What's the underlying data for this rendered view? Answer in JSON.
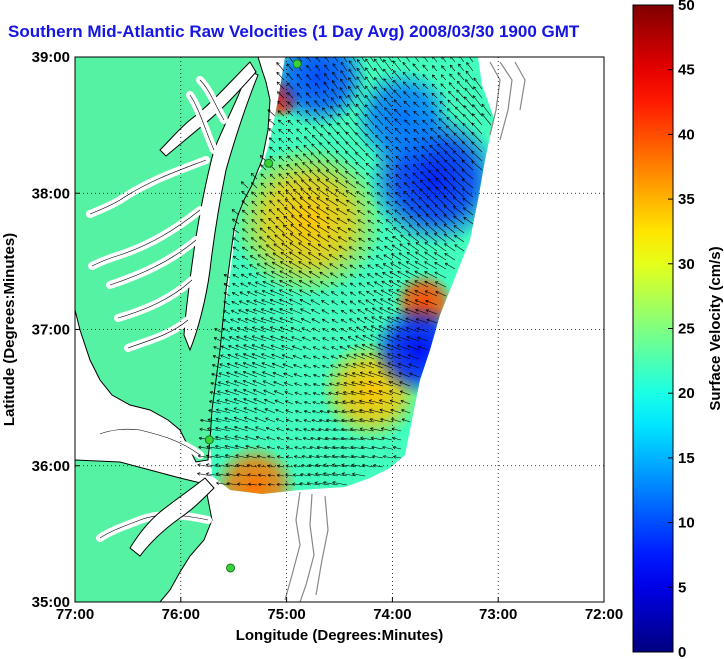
{
  "colors": {
    "title": "#1515e6",
    "land": "#55f2a3",
    "coast": "#000000",
    "bathymetry": "#888888",
    "station": "#3ad23a",
    "arrow": "#000000"
  },
  "chart_data": {
    "type": "heatmap",
    "title": "Southern Mid-Atlantic Raw Velocities (1 Day Avg) 2008/03/30 1900 GMT",
    "xlabel": "Longitude (Degrees:Minutes)",
    "ylabel": "Latitude (Degrees:Minutes)",
    "xlim": [
      -77,
      -72
    ],
    "ylim": [
      35,
      39
    ],
    "x_ticks": [
      {
        "value": -77,
        "label": "77:00"
      },
      {
        "value": -76,
        "label": "76:00"
      },
      {
        "value": -75,
        "label": "75:00"
      },
      {
        "value": -74,
        "label": "74:00"
      },
      {
        "value": -73,
        "label": "73:00"
      },
      {
        "value": -72,
        "label": "72:00"
      }
    ],
    "y_ticks": [
      {
        "value": 35,
        "label": "35:00"
      },
      {
        "value": 36,
        "label": "36:00"
      },
      {
        "value": 37,
        "label": "37:00"
      },
      {
        "value": 38,
        "label": "38:00"
      },
      {
        "value": 39,
        "label": "39:00"
      }
    ],
    "grid": "dotted",
    "colorbar": {
      "label": "Surface Velocity (cm/s)",
      "range": [
        0,
        50
      ],
      "ticks": [
        0,
        5,
        10,
        15,
        20,
        25,
        30,
        35,
        40,
        45,
        50
      ],
      "colormap": "jet"
    },
    "speed_hotspots": [
      {
        "lon": -74.8,
        "lat": 37.8,
        "speed": 34,
        "radius_deg": 0.45
      },
      {
        "lon": -73.7,
        "lat": 37.2,
        "speed": 40,
        "radius_deg": 0.18
      },
      {
        "lon": -74.2,
        "lat": 36.55,
        "speed": 34,
        "radius_deg": 0.3
      },
      {
        "lon": -75.3,
        "lat": 35.85,
        "speed": 38,
        "radius_deg": 0.25
      },
      {
        "lon": -75.05,
        "lat": 38.7,
        "speed": 42,
        "radius_deg": 0.12
      },
      {
        "lon": -74.7,
        "lat": 38.85,
        "speed": 10,
        "radius_deg": 0.3
      },
      {
        "lon": -73.6,
        "lat": 38.1,
        "speed": 8,
        "radius_deg": 0.4
      },
      {
        "lon": -73.75,
        "lat": 36.85,
        "speed": 7,
        "radius_deg": 0.28
      },
      {
        "lon": -73.9,
        "lat": 38.55,
        "speed": 12,
        "radius_deg": 0.3
      }
    ],
    "background_speed": 22,
    "stations": [
      {
        "lon": -74.9,
        "lat": 38.95
      },
      {
        "lon": -75.17,
        "lat": 38.22
      },
      {
        "lon": -75.73,
        "lat": 36.19
      },
      {
        "lon": -75.53,
        "lat": 35.25
      }
    ]
  }
}
